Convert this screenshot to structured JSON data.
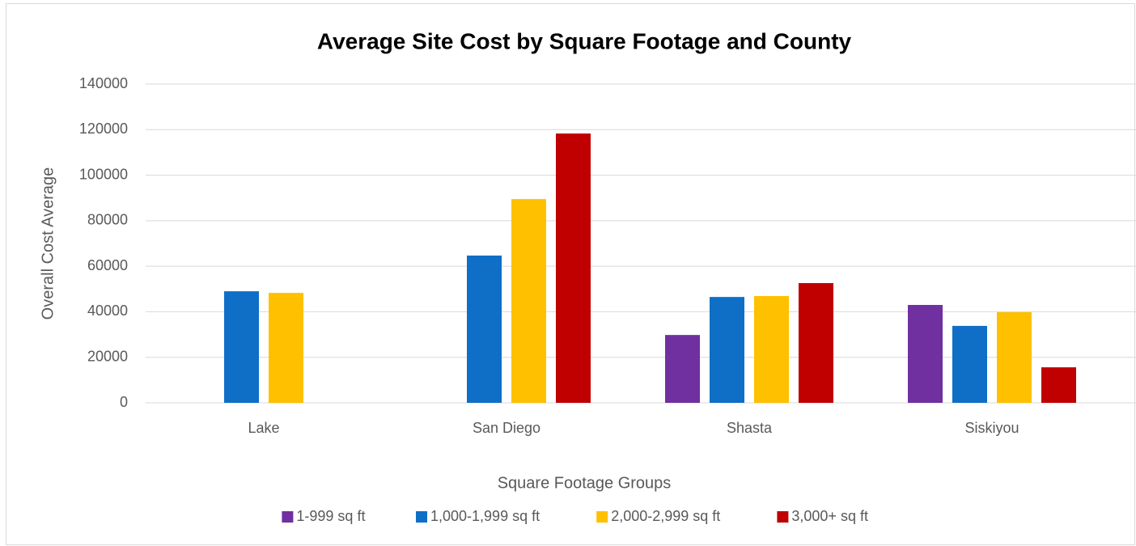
{
  "chart_data": {
    "type": "bar",
    "title": "Average Site Cost by Square Footage and County",
    "x_label": "Square Footage Groups",
    "y_label": "Overall Cost Average",
    "categories": [
      "Lake",
      "San Diego",
      "Shasta",
      "Siskiyou"
    ],
    "series": [
      {
        "name": "1-999 sq ft",
        "color": "#7030a0",
        "values": [
          null,
          null,
          29800,
          43000
        ]
      },
      {
        "name": "1,000-1,999 sq ft",
        "color": "#0f6fc6",
        "values": [
          49000,
          64700,
          46500,
          33800
        ]
      },
      {
        "name": "2,000-2,999 sq ft",
        "color": "#ffc000",
        "values": [
          48300,
          89500,
          46900,
          39800
        ]
      },
      {
        "name": "3,000+ sq ft",
        "color": "#c00000",
        "values": [
          null,
          118300,
          52600,
          15600
        ]
      }
    ],
    "ylim": [
      0,
      140000
    ],
    "yticks": [
      0,
      20000,
      40000,
      60000,
      80000,
      100000,
      120000,
      140000
    ],
    "grid": true,
    "legend": "bottom"
  }
}
